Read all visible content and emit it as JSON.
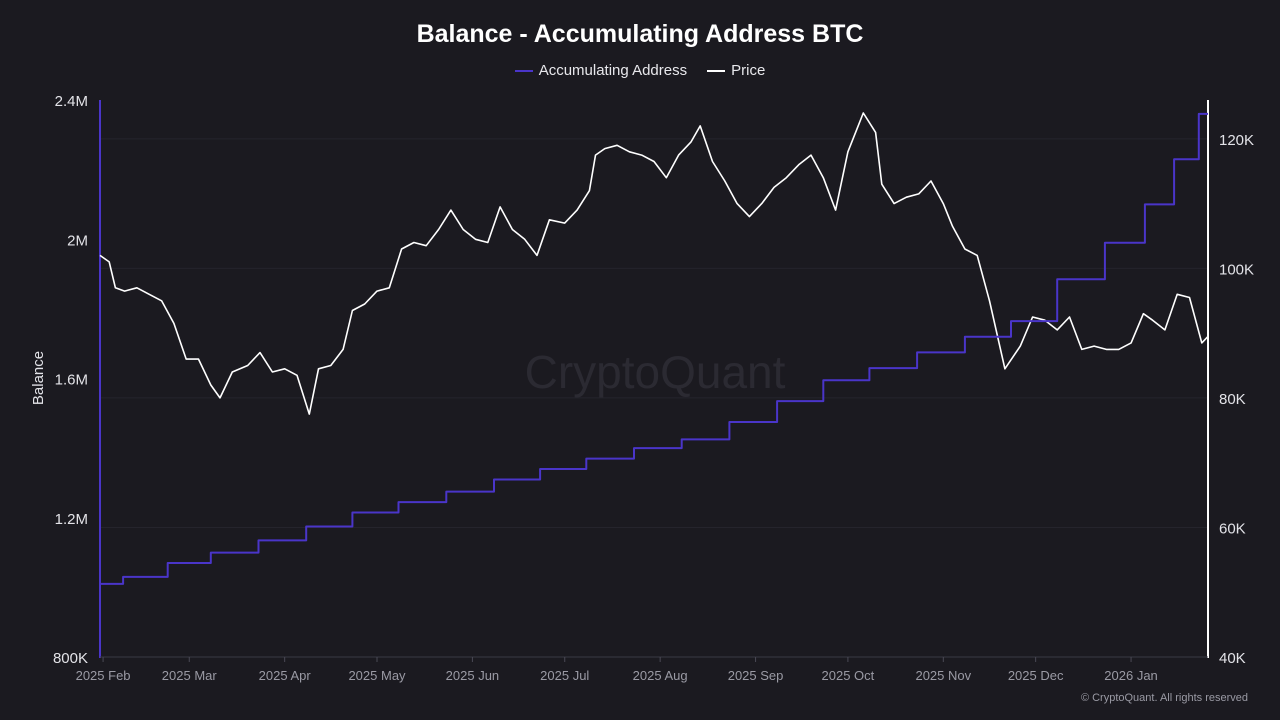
{
  "chart_data": {
    "type": "line",
    "title": "Balance - Accumulating Address BTC",
    "xlabel": "",
    "ylabel": "Balance",
    "y2label": "",
    "x_ticks": [
      "2025 Feb",
      "2025 Mar",
      "2025 Apr",
      "2025 May",
      "2025 Jun",
      "2025 Jul",
      "2025 Aug",
      "2025 Sep",
      "2025 Oct",
      "2025 Nov",
      "2025 Dec",
      "2026 Jan"
    ],
    "y_ticks": [
      "800K",
      "1.2M",
      "1.6M",
      "2M",
      "2.4M"
    ],
    "y2_ticks": [
      "40K",
      "60K",
      "80K",
      "100K",
      "120K"
    ],
    "ylim": [
      800000,
      2400000
    ],
    "y2lim": [
      40000,
      126000
    ],
    "x_range": [
      "2025-01-31",
      "2026-01-26"
    ],
    "grid": true,
    "legend_position": "top-center",
    "series": [
      {
        "name": "Accumulating Address",
        "axis": "left",
        "color": "#4a35c9",
        "x": [
          "2025-01-31",
          "2025-02-15",
          "2025-03-01",
          "2025-03-15",
          "2025-04-01",
          "2025-04-15",
          "2025-05-01",
          "2025-05-15",
          "2025-06-01",
          "2025-06-15",
          "2025-07-01",
          "2025-07-15",
          "2025-08-01",
          "2025-08-15",
          "2025-09-01",
          "2025-09-15",
          "2025-10-01",
          "2025-10-15",
          "2025-11-01",
          "2025-11-15",
          "2025-12-01",
          "2025-12-15",
          "2026-01-01",
          "2026-01-10",
          "2026-01-20",
          "2026-01-26"
        ],
        "values": [
          1010000,
          1030000,
          1070000,
          1100000,
          1135000,
          1175000,
          1215000,
          1245000,
          1275000,
          1310000,
          1340000,
          1370000,
          1400000,
          1425000,
          1475000,
          1535000,
          1595000,
          1630000,
          1675000,
          1720000,
          1765000,
          1885000,
          1990000,
          2100000,
          2230000,
          2360000
        ]
      },
      {
        "name": "Price",
        "axis": "right",
        "color": "#ffffff",
        "x": [
          "2025-01-31",
          "2025-02-03",
          "2025-02-05",
          "2025-02-08",
          "2025-02-12",
          "2025-02-16",
          "2025-02-20",
          "2025-02-24",
          "2025-02-28",
          "2025-03-04",
          "2025-03-08",
          "2025-03-11",
          "2025-03-15",
          "2025-03-20",
          "2025-03-24",
          "2025-03-28",
          "2025-04-01",
          "2025-04-05",
          "2025-04-09",
          "2025-04-12",
          "2025-04-16",
          "2025-04-20",
          "2025-04-23",
          "2025-04-27",
          "2025-05-01",
          "2025-05-05",
          "2025-05-09",
          "2025-05-13",
          "2025-05-17",
          "2025-05-21",
          "2025-05-25",
          "2025-05-29",
          "2025-06-02",
          "2025-06-06",
          "2025-06-10",
          "2025-06-14",
          "2025-06-18",
          "2025-06-22",
          "2025-06-26",
          "2025-07-01",
          "2025-07-05",
          "2025-07-09",
          "2025-07-11",
          "2025-07-14",
          "2025-07-18",
          "2025-07-22",
          "2025-07-26",
          "2025-07-30",
          "2025-08-03",
          "2025-08-07",
          "2025-08-11",
          "2025-08-14",
          "2025-08-18",
          "2025-08-22",
          "2025-08-26",
          "2025-08-30",
          "2025-09-03",
          "2025-09-07",
          "2025-09-11",
          "2025-09-15",
          "2025-09-19",
          "2025-09-23",
          "2025-09-27",
          "2025-10-01",
          "2025-10-06",
          "2025-10-10",
          "2025-10-12",
          "2025-10-16",
          "2025-10-20",
          "2025-10-24",
          "2025-10-28",
          "2025-11-01",
          "2025-11-04",
          "2025-11-08",
          "2025-11-12",
          "2025-11-16",
          "2025-11-21",
          "2025-11-26",
          "2025-11-30",
          "2025-12-04",
          "2025-12-08",
          "2025-12-12",
          "2025-12-16",
          "2025-12-20",
          "2025-12-24",
          "2025-12-28",
          "2026-01-01",
          "2026-01-05",
          "2026-01-08",
          "2026-01-12",
          "2026-01-16",
          "2026-01-20",
          "2026-01-24",
          "2026-01-26"
        ],
        "values": [
          102000,
          101000,
          97000,
          96500,
          97000,
          96000,
          95000,
          91500,
          86000,
          86000,
          82000,
          80000,
          84000,
          85000,
          87000,
          84000,
          84500,
          83500,
          77500,
          84500,
          85000,
          87500,
          93500,
          94500,
          96500,
          97000,
          103000,
          104000,
          103500,
          106000,
          109000,
          106000,
          104500,
          104000,
          109500,
          106000,
          104500,
          102000,
          107500,
          107000,
          109000,
          112000,
          117500,
          118500,
          119000,
          118000,
          117500,
          116500,
          114000,
          117500,
          119500,
          122000,
          116500,
          113500,
          110000,
          108000,
          110000,
          112500,
          114000,
          116000,
          117500,
          114000,
          109000,
          118000,
          124000,
          121000,
          113000,
          110000,
          111000,
          111500,
          113500,
          110000,
          106500,
          103000,
          102000,
          95000,
          84500,
          88000,
          92500,
          92000,
          90500,
          92500,
          87500,
          88000,
          87500,
          87500,
          88500,
          93000,
          92000,
          90500,
          96000,
          95500,
          88500,
          89500
        ]
      }
    ]
  },
  "watermark": "CryptoQuant",
  "copyright": "© CryptoQuant. All rights reserved"
}
